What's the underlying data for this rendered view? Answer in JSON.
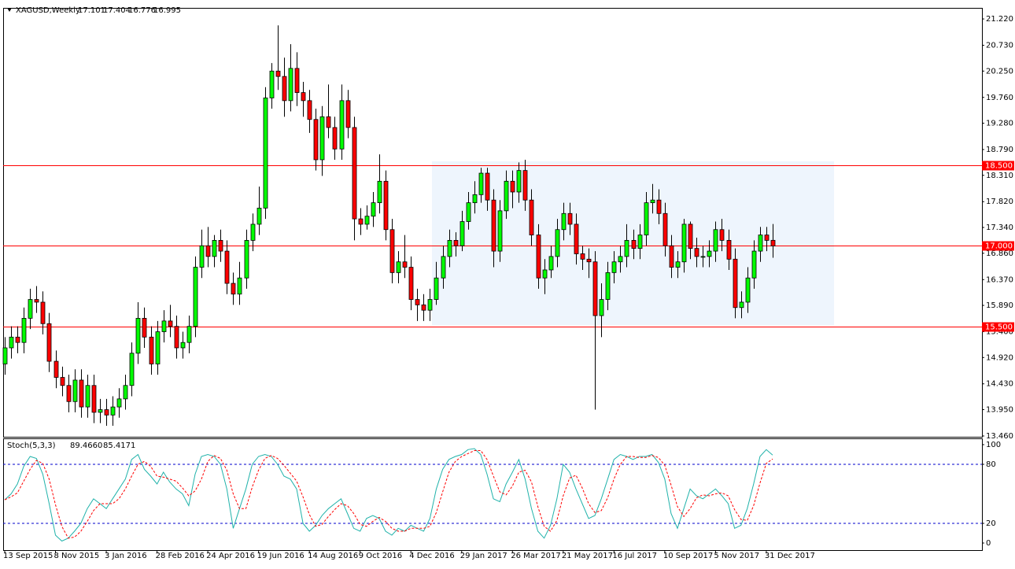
{
  "chart_data": [
    {
      "type": "candlestick",
      "title": "XAGUSD,Weekly",
      "categories": [
        "13 Sep 2015",
        null,
        null,
        null,
        null,
        null,
        null,
        null,
        "8 Nov 2015",
        null,
        null,
        null,
        null,
        null,
        null,
        null,
        "3 Jan 2016",
        null,
        null,
        null,
        null,
        null,
        null,
        null,
        "28 Feb 2016",
        null,
        null,
        null,
        null,
        null,
        null,
        null,
        "24 Apr 2016",
        null,
        null,
        null,
        null,
        null,
        null,
        null,
        "19 Jun 2016",
        null,
        null,
        null,
        null,
        null,
        null,
        null,
        "14 Aug 2016",
        null,
        null,
        null,
        null,
        null,
        null,
        null,
        "9 Oct 2016",
        null,
        null,
        null,
        null,
        null,
        null,
        null,
        "4 Dec 2016",
        null,
        null,
        null,
        null,
        null,
        null,
        null,
        "29 Jan 2017",
        null,
        null,
        null,
        null,
        null,
        null,
        null,
        "26 Mar 2017",
        null,
        null,
        null,
        null,
        null,
        null,
        null,
        "21 May 2017",
        null,
        null,
        null,
        null,
        null,
        null,
        null,
        "16 Jul 2017",
        null,
        null,
        null,
        null,
        null,
        null,
        null,
        "10 Sep 2017",
        null,
        null,
        null,
        null,
        null,
        null,
        null,
        "5 Nov 2017",
        null,
        null,
        null,
        null,
        null,
        null,
        null,
        "31 Dec 2017",
        null
      ],
      "open": [
        14.8,
        15.1,
        15.3,
        15.2,
        15.65,
        16.0,
        15.95,
        15.55,
        14.85,
        14.55,
        14.4,
        14.1,
        14.5,
        14.0,
        14.4,
        13.9,
        13.95,
        13.85,
        14.0,
        14.15,
        14.4,
        15.0,
        15.65,
        15.3,
        14.8,
        15.4,
        15.6,
        15.5,
        15.1,
        15.2,
        15.5,
        16.6,
        17.0,
        16.8,
        17.1,
        16.9,
        16.3,
        16.1,
        16.4,
        17.1,
        17.4,
        17.7,
        19.75,
        20.25,
        20.15,
        19.7,
        20.3,
        19.85,
        19.7,
        19.35,
        18.6,
        19.4,
        19.2,
        18.8,
        19.7,
        19.2,
        17.5,
        17.4,
        17.55,
        17.8,
        18.2,
        17.3,
        16.5,
        16.7,
        16.6,
        16.0,
        15.9,
        15.8,
        16.0,
        16.4,
        16.8,
        17.1,
        17.0,
        17.45,
        17.8,
        17.95,
        18.35,
        17.85,
        16.9,
        17.65,
        18.2,
        18.0,
        18.4,
        17.85,
        17.2,
        16.4,
        16.55,
        16.8,
        17.3,
        17.6,
        17.4,
        16.85,
        16.75,
        16.7,
        15.7,
        16.0,
        16.5,
        16.7,
        16.8,
        17.1,
        16.95,
        17.2,
        17.8,
        17.85,
        17.6,
        17.0,
        16.6,
        16.7,
        17.4,
        16.95,
        16.8,
        16.8,
        16.9,
        17.3,
        17.1,
        16.75,
        15.85,
        15.95,
        16.4,
        16.9,
        17.2,
        17.101
      ],
      "high": [
        15.3,
        15.5,
        15.5,
        15.85,
        16.2,
        16.25,
        16.15,
        15.75,
        15.05,
        14.75,
        14.6,
        14.7,
        14.7,
        14.6,
        14.6,
        14.15,
        14.15,
        14.2,
        14.35,
        14.6,
        15.2,
        15.95,
        15.85,
        15.5,
        15.6,
        15.8,
        15.9,
        15.7,
        15.4,
        15.7,
        16.8,
        17.3,
        17.35,
        17.2,
        17.3,
        17.1,
        16.5,
        16.7,
        17.3,
        17.6,
        18.1,
        19.95,
        20.4,
        21.1,
        20.5,
        20.75,
        20.6,
        20.05,
        19.9,
        19.55,
        19.6,
        20.0,
        19.4,
        20.0,
        19.9,
        19.4,
        17.7,
        17.75,
        18.0,
        18.7,
        18.4,
        17.5,
        16.9,
        17.2,
        16.8,
        16.2,
        16.1,
        16.2,
        16.7,
        17.0,
        17.3,
        17.25,
        17.65,
        18.0,
        18.2,
        18.45,
        18.45,
        18.05,
        17.85,
        18.4,
        18.4,
        18.55,
        18.6,
        18.05,
        17.4,
        16.75,
        17.0,
        17.5,
        17.8,
        17.8,
        17.6,
        17.0,
        16.95,
        16.9,
        16.3,
        16.7,
        16.9,
        17.0,
        17.4,
        17.3,
        17.4,
        18.0,
        18.15,
        18.05,
        17.8,
        17.2,
        16.9,
        17.5,
        17.45,
        17.15,
        17.0,
        17.1,
        17.45,
        17.5,
        17.3,
        16.95,
        16.15,
        16.6,
        17.1,
        17.35,
        17.35,
        17.404
      ],
      "low": [
        14.6,
        14.9,
        15.0,
        15.0,
        15.45,
        15.75,
        15.35,
        14.65,
        14.35,
        14.2,
        13.9,
        13.9,
        13.8,
        13.8,
        13.7,
        13.7,
        13.65,
        13.65,
        13.8,
        13.95,
        14.2,
        14.8,
        15.1,
        14.6,
        14.6,
        15.2,
        15.3,
        14.9,
        14.9,
        15.0,
        15.3,
        16.4,
        16.6,
        16.6,
        16.7,
        16.1,
        15.9,
        15.9,
        16.2,
        16.9,
        17.2,
        17.5,
        19.55,
        19.9,
        19.4,
        19.5,
        19.6,
        19.4,
        19.1,
        18.4,
        18.3,
        19.0,
        18.6,
        18.6,
        19.0,
        17.1,
        17.2,
        17.3,
        17.35,
        17.6,
        17.1,
        16.3,
        16.3,
        16.4,
        15.8,
        15.6,
        15.6,
        15.6,
        15.9,
        16.2,
        16.6,
        16.8,
        16.9,
        17.3,
        17.6,
        17.8,
        17.65,
        16.6,
        16.7,
        17.5,
        17.7,
        17.8,
        17.65,
        17.0,
        16.2,
        16.1,
        16.4,
        16.6,
        17.1,
        17.2,
        16.65,
        16.55,
        16.4,
        13.95,
        15.3,
        15.8,
        16.3,
        16.5,
        16.6,
        16.75,
        16.75,
        17.0,
        17.6,
        17.4,
        16.8,
        16.4,
        16.4,
        16.5,
        16.75,
        16.6,
        16.6,
        16.6,
        16.7,
        16.9,
        16.55,
        15.65,
        15.65,
        15.75,
        16.2,
        16.7,
        16.9,
        16.776
      ],
      "close": [
        15.1,
        15.3,
        15.2,
        15.65,
        16.0,
        15.95,
        15.55,
        14.85,
        14.55,
        14.4,
        14.1,
        14.5,
        14.0,
        14.4,
        13.9,
        13.95,
        13.85,
        14.0,
        14.15,
        14.4,
        15.0,
        15.65,
        15.3,
        14.8,
        15.4,
        15.6,
        15.5,
        15.1,
        15.2,
        15.5,
        16.6,
        17.0,
        16.8,
        17.1,
        16.9,
        16.3,
        16.1,
        16.4,
        17.1,
        17.4,
        17.7,
        19.75,
        20.25,
        20.15,
        19.7,
        20.3,
        19.85,
        19.7,
        19.35,
        18.6,
        19.4,
        19.2,
        18.8,
        19.7,
        19.2,
        17.5,
        17.4,
        17.55,
        17.8,
        18.2,
        17.3,
        16.5,
        16.7,
        16.6,
        16.0,
        15.9,
        15.8,
        16.0,
        16.4,
        16.8,
        17.1,
        17.0,
        17.45,
        17.8,
        17.95,
        18.35,
        17.85,
        16.9,
        17.65,
        18.2,
        18.0,
        18.4,
        17.85,
        17.2,
        16.4,
        16.55,
        16.8,
        17.3,
        17.6,
        17.4,
        16.85,
        16.75,
        16.7,
        15.7,
        16.0,
        16.5,
        16.7,
        16.8,
        17.1,
        16.95,
        17.2,
        17.8,
        17.85,
        17.6,
        17.0,
        16.6,
        16.7,
        17.4,
        16.95,
        16.8,
        16.8,
        16.9,
        17.3,
        17.1,
        16.75,
        15.85,
        15.95,
        16.4,
        16.9,
        17.2,
        17.1,
        16.995
      ],
      "up_color": "#00ff00",
      "down_color": "#ff0000",
      "wick_color": "#000000",
      "ylim": [
        13.445,
        21.426
      ],
      "yticks": [
        {
          "value": 21.22,
          "label": "21.220"
        },
        {
          "value": 20.73,
          "label": "20.730"
        },
        {
          "value": 20.25,
          "label": "20.250"
        },
        {
          "value": 19.76,
          "label": "19.760"
        },
        {
          "value": 19.28,
          "label": "19.280"
        },
        {
          "value": 18.79,
          "label": "18.790"
        },
        {
          "value": 18.31,
          "label": "18.310"
        },
        {
          "value": 17.82,
          "label": "17.820"
        },
        {
          "value": 17.34,
          "label": "17.340"
        },
        {
          "value": 16.86,
          "label": "16.860"
        },
        {
          "value": 16.37,
          "label": "16.370"
        },
        {
          "value": 15.89,
          "label": "15.890"
        },
        {
          "value": 15.4,
          "label": "15.400"
        },
        {
          "value": 14.92,
          "label": "14.920"
        },
        {
          "value": 14.43,
          "label": "14.430"
        },
        {
          "value": 13.95,
          "label": "13.950"
        },
        {
          "value": 13.46,
          "label": "13.460"
        }
      ],
      "hlines": [
        {
          "value": 18.5,
          "label": "18.500"
        },
        {
          "value": 17,
          "label": "17.000"
        },
        {
          "value": 15.5,
          "label": "15.500"
        }
      ],
      "hline_color": "#ff0000",
      "grid": false
    },
    {
      "type": "line",
      "title": "Stoch(5,3,3)",
      "header_labels": [
        "89.4660",
        "85.4171"
      ],
      "ylim": [
        -8,
        105.6
      ],
      "yticks": [
        100,
        80,
        20,
        0
      ],
      "levels_color": "#0000cc",
      "series": [
        {
          "color": "#20b2aa",
          "dashed": false,
          "values": [
            44,
            50,
            60,
            78,
            88,
            86,
            70,
            40,
            8,
            2,
            5,
            12,
            20,
            35,
            45,
            40,
            35,
            45,
            55,
            65,
            85,
            90,
            75,
            68,
            60,
            72,
            62,
            55,
            50,
            38,
            70,
            88,
            90,
            88,
            80,
            55,
            15,
            35,
            55,
            80,
            88,
            90,
            88,
            80,
            68,
            65,
            55,
            20,
            12,
            18,
            28,
            35,
            40,
            45,
            30,
            15,
            12,
            25,
            28,
            25,
            12,
            8,
            15,
            12,
            18,
            15,
            12,
            25,
            55,
            75,
            85,
            88,
            90,
            95,
            96,
            90,
            70,
            45,
            42,
            60,
            72,
            85,
            65,
            35,
            12,
            5,
            18,
            45,
            80,
            72,
            55,
            40,
            25,
            28,
            45,
            65,
            85,
            90,
            88,
            85,
            88,
            88,
            90,
            82,
            65,
            30,
            15,
            35,
            55,
            48,
            45,
            50,
            55,
            48,
            40,
            15,
            18,
            35,
            60,
            88,
            95,
            89.466
          ]
        },
        {
          "color": "#ff0000",
          "dashed": true,
          "values": [
            44,
            47,
            51,
            63,
            75,
            84,
            81,
            65,
            39,
            17,
            5,
            6,
            12,
            22,
            33,
            40,
            40,
            40,
            45,
            55,
            68,
            80,
            83,
            78,
            68,
            67,
            65,
            63,
            56,
            48,
            53,
            65,
            83,
            89,
            86,
            74,
            50,
            35,
            35,
            57,
            74,
            86,
            89,
            86,
            79,
            71,
            63,
            47,
            29,
            17,
            19,
            27,
            34,
            40,
            38,
            30,
            19,
            17,
            22,
            26,
            22,
            15,
            12,
            12,
            15,
            15,
            15,
            17,
            31,
            52,
            72,
            83,
            88,
            91,
            94,
            94,
            85,
            68,
            52,
            49,
            58,
            72,
            74,
            62,
            37,
            17,
            12,
            23,
            48,
            66,
            69,
            56,
            40,
            31,
            33,
            46,
            65,
            80,
            88,
            88,
            87,
            87,
            89,
            87,
            79,
            59,
            37,
            27,
            35,
            46,
            49,
            48,
            50,
            51,
            48,
            34,
            24,
            23,
            38,
            61,
            81,
            85.4171
          ]
        }
      ]
    }
  ]
}
